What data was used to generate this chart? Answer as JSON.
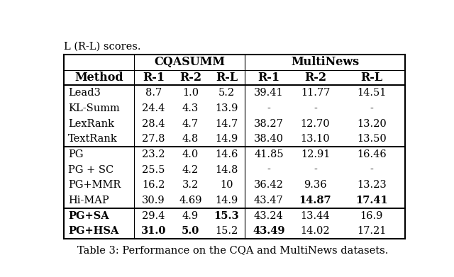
{
  "title_top": "L (R-L) scores.",
  "caption": "Table 3: Performance on the CQA and MultiNews datasets.",
  "rows": [
    {
      "method": "Lead3",
      "bold_method": false,
      "cqa": [
        "8.7",
        "1.0",
        "5.2"
      ],
      "cqa_bold": [
        false,
        false,
        false
      ],
      "mn": [
        "39.41",
        "11.77",
        "14.51"
      ],
      "mn_bold": [
        false,
        false,
        false
      ],
      "group": 0
    },
    {
      "method": "KL-Summ",
      "bold_method": false,
      "cqa": [
        "24.4",
        "4.3",
        "13.9"
      ],
      "cqa_bold": [
        false,
        false,
        false
      ],
      "mn": [
        "-",
        "-",
        "-"
      ],
      "mn_bold": [
        false,
        false,
        false
      ],
      "group": 0
    },
    {
      "method": "LexRank",
      "bold_method": false,
      "cqa": [
        "28.4",
        "4.7",
        "14.7"
      ],
      "cqa_bold": [
        false,
        false,
        false
      ],
      "mn": [
        "38.27",
        "12.70",
        "13.20"
      ],
      "mn_bold": [
        false,
        false,
        false
      ],
      "group": 0
    },
    {
      "method": "TextRank",
      "bold_method": false,
      "cqa": [
        "27.8",
        "4.8",
        "14.9"
      ],
      "cqa_bold": [
        false,
        false,
        false
      ],
      "mn": [
        "38.40",
        "13.10",
        "13.50"
      ],
      "mn_bold": [
        false,
        false,
        false
      ],
      "group": 0
    },
    {
      "method": "PG",
      "bold_method": false,
      "cqa": [
        "23.2",
        "4.0",
        "14.6"
      ],
      "cqa_bold": [
        false,
        false,
        false
      ],
      "mn": [
        "41.85",
        "12.91",
        "16.46"
      ],
      "mn_bold": [
        false,
        false,
        false
      ],
      "group": 1
    },
    {
      "method": "PG + SC",
      "bold_method": false,
      "cqa": [
        "25.5",
        "4.2",
        "14.8"
      ],
      "cqa_bold": [
        false,
        false,
        false
      ],
      "mn": [
        "-",
        "-",
        "-"
      ],
      "mn_bold": [
        false,
        false,
        false
      ],
      "group": 1
    },
    {
      "method": "PG+MMR",
      "bold_method": false,
      "cqa": [
        "16.2",
        "3.2",
        "10"
      ],
      "cqa_bold": [
        false,
        false,
        false
      ],
      "mn": [
        "36.42",
        "9.36",
        "13.23"
      ],
      "mn_bold": [
        false,
        false,
        false
      ],
      "group": 1
    },
    {
      "method": "Hi-MAP",
      "bold_method": false,
      "cqa": [
        "30.9",
        "4.69",
        "14.9"
      ],
      "cqa_bold": [
        false,
        false,
        false
      ],
      "mn": [
        "43.47",
        "14.87",
        "17.41"
      ],
      "mn_bold": [
        false,
        true,
        true
      ],
      "group": 1
    },
    {
      "method": "PG+SA",
      "bold_method": true,
      "cqa": [
        "29.4",
        "4.9",
        "15.3"
      ],
      "cqa_bold": [
        false,
        false,
        true
      ],
      "mn": [
        "43.24",
        "13.44",
        "16.9"
      ],
      "mn_bold": [
        false,
        false,
        false
      ],
      "group": 2
    },
    {
      "method": "PG+HSA",
      "bold_method": true,
      "cqa": [
        "31.0",
        "5.0",
        "15.2"
      ],
      "cqa_bold": [
        true,
        true,
        false
      ],
      "mn": [
        "43.49",
        "14.02",
        "17.21"
      ],
      "mn_bold": [
        true,
        false,
        false
      ],
      "group": 2
    }
  ],
  "bg_color": "#ffffff",
  "text_color": "#000000",
  "font_size": 10.5,
  "header_font_size": 11.5,
  "caption_font_size": 10.5
}
